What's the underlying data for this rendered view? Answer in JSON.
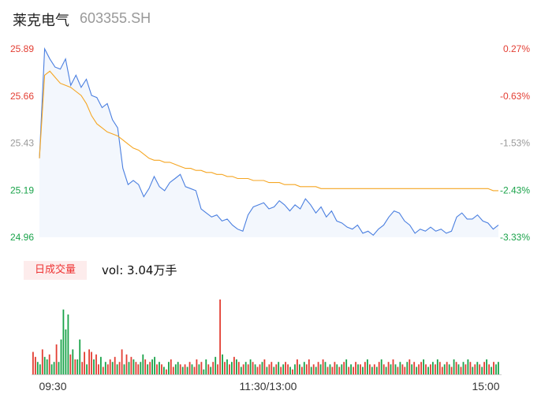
{
  "header": {
    "name": "莱克电气",
    "code": "603355.SH"
  },
  "volume_panel": {
    "tab_label": "日成交量",
    "vol_text": "vol: 3.04万手"
  },
  "colors": {
    "up": "#e33e33",
    "down": "#1aa34a",
    "neutral": "#999999",
    "price_line": "#4a7fe0",
    "avg_line": "#f5a623"
  },
  "chart_data": [
    {
      "type": "line",
      "series": [
        {
          "name": "",
          "role": "price",
          "values": [
            25.35,
            25.89,
            25.84,
            25.8,
            25.79,
            25.84,
            25.71,
            25.76,
            25.7,
            25.74,
            25.66,
            25.65,
            25.6,
            25.62,
            25.54,
            25.5,
            25.3,
            25.22,
            25.24,
            25.22,
            25.16,
            25.2,
            25.26,
            25.21,
            25.19,
            25.23,
            25.25,
            25.27,
            25.21,
            25.2,
            25.19,
            25.1,
            25.08,
            25.06,
            25.07,
            25.04,
            25.05,
            25.02,
            25.0,
            24.99,
            25.07,
            25.11,
            25.12,
            25.13,
            25.1,
            25.11,
            25.14,
            25.12,
            25.09,
            25.12,
            25.1,
            25.15,
            25.12,
            25.08,
            25.11,
            25.06,
            25.09,
            25.04,
            25.03,
            25.01,
            25.0,
            25.02,
            24.98,
            24.99,
            24.97,
            25.0,
            25.02,
            25.06,
            25.09,
            25.08,
            25.04,
            25.02,
            24.98,
            25.0,
            24.99,
            25.01,
            24.99,
            25.0,
            24.98,
            24.99,
            25.06,
            25.08,
            25.05,
            25.05,
            25.07,
            25.04,
            25.03,
            25.0,
            25.02
          ]
        },
        {
          "name": "",
          "role": "average",
          "values": [
            25.35,
            25.76,
            25.78,
            25.75,
            25.72,
            25.71,
            25.7,
            25.68,
            25.66,
            25.62,
            25.56,
            25.52,
            25.5,
            25.48,
            25.47,
            25.46,
            25.44,
            25.42,
            25.4,
            25.39,
            25.37,
            25.35,
            25.34,
            25.34,
            25.33,
            25.33,
            25.32,
            25.31,
            25.3,
            25.3,
            25.29,
            25.29,
            25.28,
            25.28,
            25.27,
            25.27,
            25.26,
            25.26,
            25.25,
            25.25,
            25.25,
            25.24,
            25.24,
            25.24,
            25.23,
            25.23,
            25.23,
            25.22,
            25.22,
            25.22,
            25.21,
            25.21,
            25.21,
            25.21,
            25.2,
            25.2,
            25.2,
            25.2,
            25.2,
            25.2,
            25.2,
            25.2,
            25.2,
            25.2,
            25.2,
            25.2,
            25.2,
            25.2,
            25.2,
            25.2,
            25.2,
            25.2,
            25.2,
            25.2,
            25.2,
            25.2,
            25.2,
            25.2,
            25.2,
            25.2,
            25.2,
            25.2,
            25.2,
            25.2,
            25.2,
            25.2,
            25.2,
            25.19,
            25.19
          ]
        }
      ],
      "y_ticks": [
        "25.89",
        "25.66",
        "25.43",
        "25.19",
        "24.96"
      ],
      "y_ticks_right": [
        "0.27%",
        "-0.63%",
        "-1.53%",
        "-2.43%",
        "-3.33%"
      ],
      "ylim": [
        24.96,
        25.89
      ]
    },
    {
      "type": "bar",
      "x_ticks": [
        "09:30",
        "11:30/13:00",
        "15:00"
      ],
      "values": [
        9,
        7,
        5,
        4,
        10,
        7,
        6,
        8,
        4,
        5,
        12,
        5,
        14,
        26,
        18,
        24,
        8,
        10,
        6,
        6,
        14,
        5,
        9,
        4,
        10,
        9,
        6,
        8,
        4,
        7,
        3,
        5,
        4,
        6,
        5,
        7,
        4,
        5,
        10,
        4,
        8,
        5,
        7,
        6,
        5,
        4,
        5,
        8,
        6,
        4,
        5,
        6,
        7,
        4,
        5,
        4,
        3,
        2,
        5,
        6,
        3,
        4,
        5,
        4,
        3,
        4,
        3,
        5,
        4,
        3,
        6,
        4,
        5,
        2,
        6,
        4,
        3,
        5,
        7,
        4,
        30,
        8,
        5,
        6,
        4,
        5,
        7,
        6,
        5,
        3,
        4,
        5,
        4,
        6,
        5,
        4,
        3,
        4,
        5,
        6,
        3,
        4,
        5,
        3,
        4,
        5,
        3,
        4,
        5,
        4,
        3,
        2,
        4,
        6,
        4,
        3,
        5,
        4,
        6,
        3,
        4,
        3,
        5,
        4,
        6,
        5,
        3,
        4,
        3,
        5,
        4,
        3,
        4,
        5,
        6,
        3,
        4,
        3,
        5,
        4,
        4,
        3,
        5,
        6,
        4,
        3,
        4,
        3,
        5,
        6,
        4,
        3,
        5,
        4,
        6,
        4,
        3,
        5,
        4,
        3,
        5,
        6,
        4,
        5,
        3,
        4,
        5,
        6,
        4,
        3,
        4,
        5,
        4,
        6,
        5,
        3,
        4,
        5,
        4,
        3,
        6,
        5,
        4,
        3,
        5,
        4,
        6,
        5,
        3,
        4,
        5,
        4,
        3,
        5,
        6,
        4,
        3,
        5,
        4,
        5
      ],
      "directions": [
        "u",
        "u",
        "d",
        "d",
        "u",
        "d",
        "d",
        "u",
        "d",
        "d",
        "u",
        "d",
        "d",
        "d",
        "d",
        "d",
        "u",
        "d",
        "u",
        "d",
        "d",
        "u",
        "u",
        "d",
        "u",
        "u",
        "d",
        "u",
        "u",
        "d",
        "u",
        "d",
        "u",
        "u",
        "d",
        "u",
        "d",
        "u",
        "u",
        "d",
        "u",
        "d",
        "u",
        "d",
        "u",
        "u",
        "d",
        "d",
        "u",
        "d",
        "u",
        "d",
        "d",
        "u",
        "d",
        "u",
        "d",
        "u",
        "d",
        "u",
        "u",
        "d",
        "d",
        "u",
        "d",
        "u",
        "d",
        "u",
        "d",
        "u",
        "u",
        "d",
        "u",
        "d",
        "d",
        "u",
        "d",
        "u",
        "d",
        "u",
        "u",
        "d",
        "u",
        "d",
        "u",
        "d",
        "u",
        "d",
        "u",
        "d",
        "u",
        "d",
        "u",
        "d",
        "u",
        "d",
        "u",
        "u",
        "d",
        "u",
        "d",
        "u",
        "u",
        "d",
        "u",
        "d",
        "u",
        "d",
        "u",
        "u",
        "d",
        "u",
        "d",
        "u",
        "d",
        "u",
        "d",
        "u",
        "u",
        "d",
        "u",
        "d",
        "u",
        "d",
        "u",
        "d",
        "u",
        "d",
        "u",
        "u",
        "d",
        "u",
        "d",
        "u",
        "d",
        "u",
        "d",
        "u",
        "u",
        "d",
        "u",
        "d",
        "u",
        "d",
        "u",
        "d",
        "u",
        "d",
        "u",
        "d",
        "u",
        "d",
        "u",
        "d",
        "u",
        "d",
        "u",
        "d",
        "u",
        "u",
        "d",
        "u",
        "d",
        "u",
        "d",
        "u",
        "u",
        "d",
        "u",
        "d",
        "u",
        "d",
        "u",
        "d",
        "u",
        "u",
        "d",
        "u",
        "d",
        "u",
        "d",
        "u",
        "d",
        "u",
        "d",
        "u",
        "d",
        "u",
        "d",
        "u",
        "d",
        "u",
        "d",
        "u",
        "d",
        "u",
        "d",
        "u",
        "d",
        "d"
      ]
    }
  ]
}
